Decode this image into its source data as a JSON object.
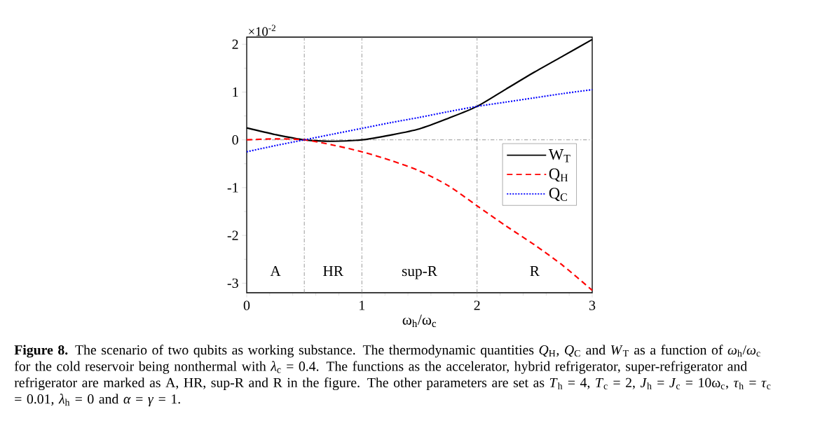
{
  "chart_data": {
    "type": "line",
    "x": [
      0,
      0.25,
      0.5,
      0.75,
      1,
      1.25,
      1.5,
      1.75,
      2,
      2.25,
      2.5,
      2.75,
      3
    ],
    "series": [
      {
        "name": "W$_{T}$",
        "color": "#000000",
        "line_style": "solid",
        "values": [
          0.25,
          0.11,
          0,
          -0.03,
          0,
          0.1,
          0.23,
          0.45,
          0.7,
          1.06,
          1.42,
          1.76,
          2.1
        ]
      },
      {
        "name": "Q$_{H}$",
        "color": "#ff0000",
        "line_style": "dashed",
        "values": [
          0,
          0.02,
          0,
          -0.11,
          -0.25,
          -0.43,
          -0.65,
          -0.96,
          -1.38,
          -1.8,
          -2.2,
          -2.64,
          -3.15
        ]
      },
      {
        "name": "Q$_{C}$",
        "color": "#0000ff",
        "line_style": "dotted",
        "values": [
          -0.25,
          -0.12,
          0,
          0.12,
          0.24,
          0.36,
          0.47,
          0.59,
          0.7,
          0.79,
          0.88,
          0.97,
          1.05
        ]
      }
    ],
    "xlabel": "ω$_{h}$/ω$_{c}$",
    "xlim": [
      0,
      3
    ],
    "xticks": [
      0,
      1,
      2,
      3
    ],
    "ylim": [
      -3.2,
      2.15
    ],
    "yticks": [
      -3,
      -2,
      -1,
      0,
      1,
      2
    ],
    "legend": "right",
    "ref_lines": [
      {
        "axis": "x",
        "value": 0.5,
        "color": "#808080",
        "line_style": "dashdot"
      },
      {
        "axis": "x",
        "value": 1,
        "color": "#808080",
        "line_style": "dashdot"
      },
      {
        "axis": "x",
        "value": 2,
        "color": "#808080",
        "line_style": "dashdot"
      },
      {
        "axis": "y",
        "value": 0,
        "color": "#808080",
        "line_style": "dashdot"
      }
    ],
    "annotations": [
      "×10$^{-2}$",
      "A",
      "HR",
      "sup-R",
      "R",
      "**Figure 8.** The scenario of two qubits as working substance. The thermodynamic quantities *Q*$_{H}$, *Q*$_{C}$ and *W*$_{T}$ as a function of *ω*$_{h}$/*ω*$_{c}$ for the cold reservoir being nonthermal with *λ*$_{c}$ = 0.4. The functions as the accelerator, hybrid refrigerator, super-refrigerator and refrigerator are marked as A, HR, sup-R and R in the figure. The other parameters are set as *T*$_{h}$ = 4, *T*$_{c}$ = 2, *J*$_{h}$ = *J*$_{c}$ = 10ω$_{c}$, *τ*$_{h}$ = *τ*$_{c}$ = 0.01, *λ*$_{h}$ = 0 and *α* = *γ* = 1."
    ]
  }
}
